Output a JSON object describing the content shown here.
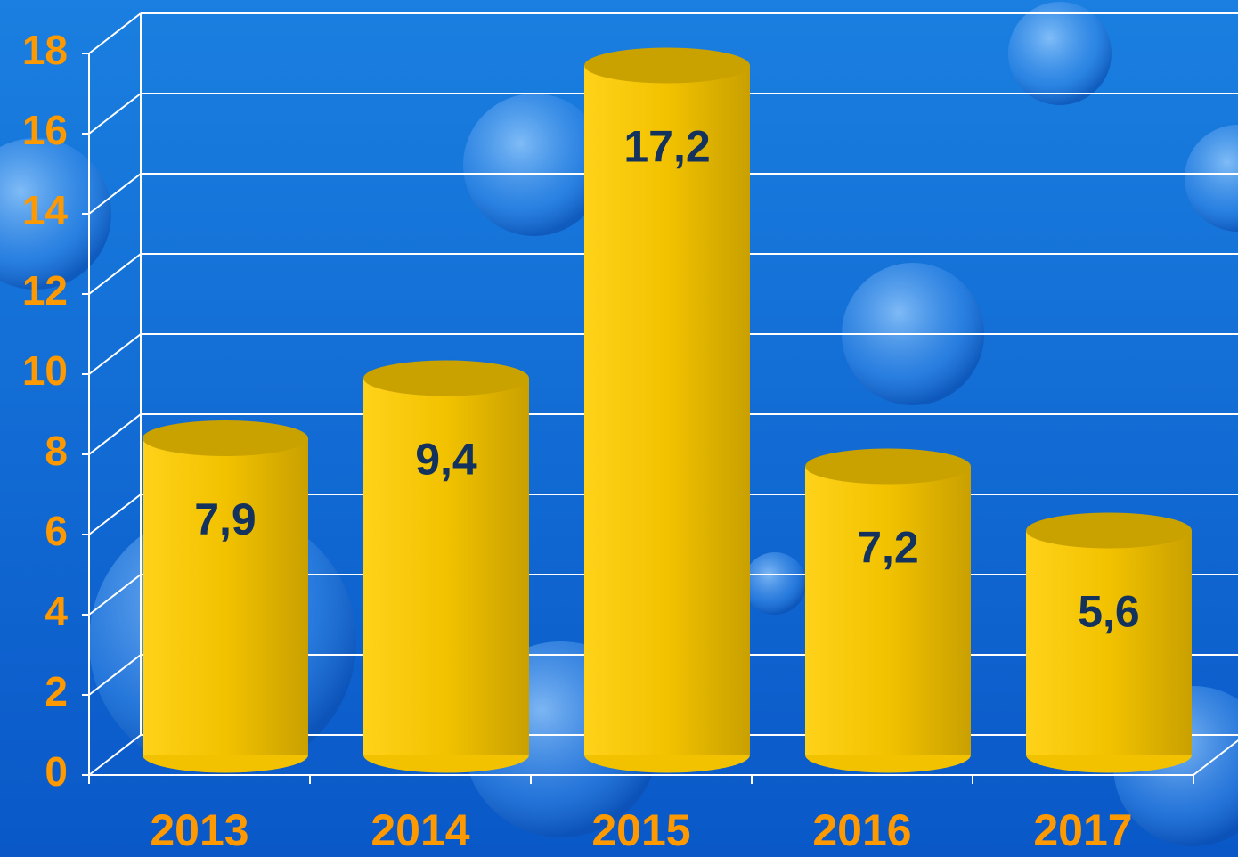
{
  "chart_data": {
    "type": "bar",
    "categories": [
      "2013",
      "2014",
      "2015",
      "2016",
      "2017"
    ],
    "values": [
      7.9,
      9.4,
      17.2,
      7.2,
      5.6
    ],
    "value_labels": [
      "7,9",
      "9,4",
      "17,2",
      "7,2",
      "5,6"
    ],
    "color": "#f2c200",
    "ylim": [
      0,
      18
    ],
    "yticks": [
      0,
      2,
      4,
      6,
      8,
      10,
      12,
      14,
      16,
      18
    ],
    "grid": true
  }
}
